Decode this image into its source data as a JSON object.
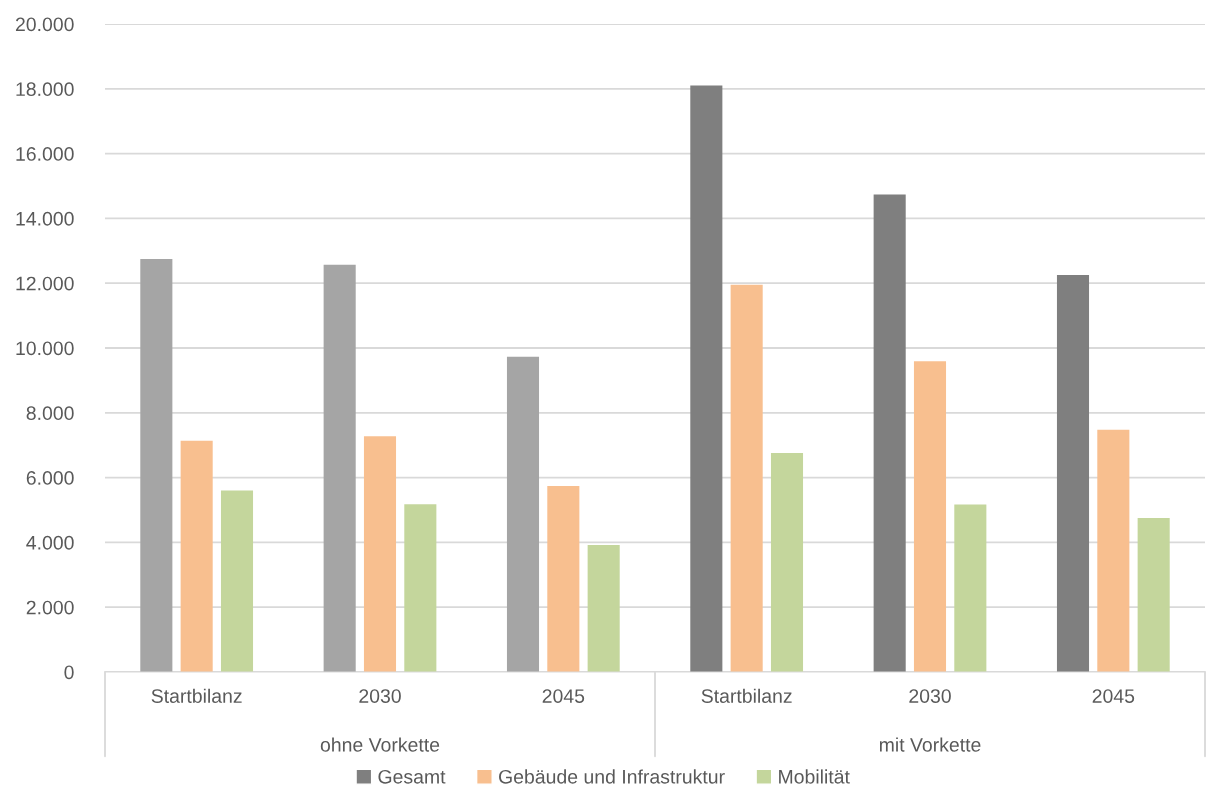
{
  "chart_data": {
    "type": "bar",
    "categories": [
      "Startbilanz",
      "2030",
      "2045",
      "Startbilanz",
      "2030",
      "2045"
    ],
    "series": [
      {
        "name": "Gesamt",
        "color": "#7f7f7f",
        "colors": [
          "#a5a5a5",
          "#a5a5a5",
          "#a5a5a5",
          "#7f7f7f",
          "#7f7f7f",
          "#7f7f7f"
        ],
        "values": [
          12750,
          12570,
          9730,
          18100,
          14740,
          12250
        ]
      },
      {
        "name": "Gebäude und Infrastruktur",
        "color": "#f8bf8f",
        "values": [
          7140,
          7280,
          5740,
          11950,
          9590,
          7480
        ]
      },
      {
        "name": "Mobilität",
        "color": "#c4d69c",
        "values": [
          5600,
          5180,
          3920,
          6760,
          5170,
          4750
        ]
      }
    ],
    "annotations": [
      "ohne Vorkette",
      "mit Vorkette"
    ],
    "ylim": [
      0,
      20000
    ],
    "yticks": [
      0,
      {
        "value": 2000,
        "label": "2.000"
      },
      {
        "value": 4000,
        "label": "4.000"
      },
      {
        "value": 6000,
        "label": "6.000"
      },
      {
        "value": 8000,
        "label": "8.000"
      },
      {
        "value": 10000,
        "label": "10.000"
      },
      {
        "value": 12000,
        "label": "12.000"
      },
      {
        "value": 14000,
        "label": "14.000"
      },
      {
        "value": 16000,
        "label": "16.000"
      },
      {
        "value": 18000,
        "label": "18.000"
      },
      {
        "value": 20000,
        "label": "20.000"
      }
    ],
    "grid": "y",
    "legend": "bottom"
  }
}
